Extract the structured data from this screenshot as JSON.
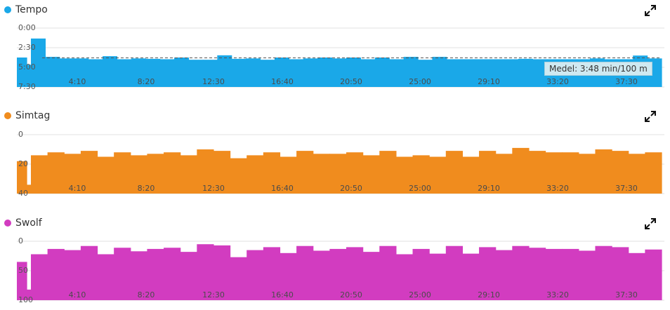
{
  "charts": [
    {
      "legend_label": "Tempo",
      "color": "#1aa8e8",
      "icon": "expand-icon"
    },
    {
      "legend_label": "Simtag",
      "color": "#f08c1e",
      "icon": "expand-icon"
    },
    {
      "legend_label": "Swolf",
      "color": "#d23cc0",
      "icon": "expand-icon"
    }
  ],
  "tooltip": {
    "text": "Medel: 3:48 min/100 m"
  },
  "chart_data": [
    {
      "type": "bar",
      "title": "Tempo",
      "ylabel": "",
      "xlabel": "",
      "y_unit": "min/100 m (seconds)",
      "y_reversed": true,
      "y_ticks": [
        "0:00",
        "2:30",
        "5:00",
        "7:30"
      ],
      "x_ticks": [
        "4:10",
        "8:20",
        "12:30",
        "16:40",
        "20:50",
        "25:00",
        "29:10",
        "33:20",
        "37:30"
      ],
      "average_line": 228,
      "series": [
        {
          "values": [
            225,
            280,
            80,
            220,
            232,
            232,
            238,
            215,
            238,
            232,
            235,
            238,
            225,
            242,
            242,
            208,
            235,
            232,
            242,
            225,
            238,
            232,
            225,
            232,
            225,
            238,
            225,
            238,
            220,
            242,
            220,
            238,
            238,
            238,
            238,
            238,
            235,
            238,
            238,
            238,
            238,
            232,
            238,
            238,
            210,
            232
          ]
        }
      ]
    },
    {
      "type": "bar",
      "title": "Simtag",
      "ylabel": "",
      "xlabel": "",
      "y_ticks": [
        "0",
        "20",
        "40"
      ],
      "ylim": [
        0,
        40
      ],
      "x_ticks": [
        "4:10",
        "8:20",
        "12:30",
        "16:40",
        "20:50",
        "25:00",
        "29:10",
        "33:20",
        "37:30"
      ],
      "series": [
        {
          "values": [
            22,
            6,
            26,
            28,
            27,
            29,
            25,
            28,
            26,
            27,
            28,
            26,
            30,
            29,
            24,
            26,
            28,
            25,
            29,
            27,
            27,
            28,
            26,
            29,
            25,
            26,
            25,
            29,
            25,
            29,
            27,
            31,
            29,
            28,
            28,
            27,
            30,
            29,
            27,
            28
          ]
        }
      ]
    },
    {
      "type": "bar",
      "title": "Swolf",
      "ylabel": "",
      "xlabel": "",
      "y_ticks": [
        "0",
        "50",
        "100"
      ],
      "ylim": [
        0,
        100
      ],
      "x_ticks": [
        "4:10",
        "8:20",
        "12:30",
        "16:40",
        "20:50",
        "25:00",
        "29:10",
        "33:20",
        "37:30"
      ],
      "series": [
        {
          "values": [
            65,
            18,
            78,
            87,
            85,
            92,
            78,
            89,
            83,
            87,
            89,
            82,
            95,
            93,
            73,
            85,
            90,
            80,
            92,
            84,
            87,
            90,
            82,
            92,
            78,
            87,
            79,
            92,
            79,
            90,
            85,
            92,
            89,
            87,
            87,
            84,
            92,
            90,
            80,
            86
          ]
        }
      ]
    }
  ]
}
